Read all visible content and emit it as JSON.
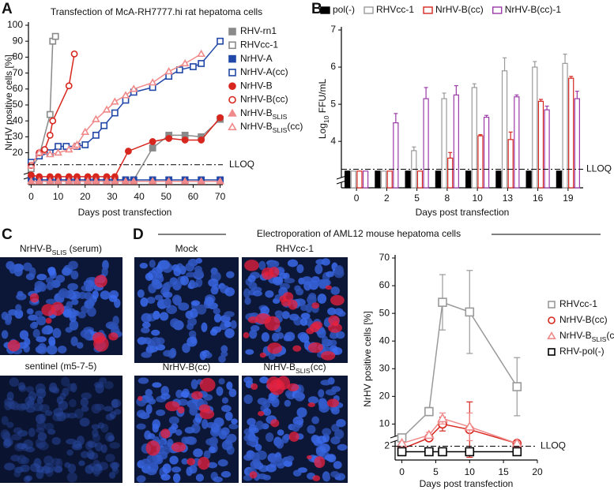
{
  "subscripts": [
    "SLIS",
    "10"
  ],
  "panel_labels": [
    "A",
    "B",
    "C",
    "D"
  ],
  "electroporation_title": "Electroporation of AML12 mouse hepatoma cells",
  "images": [
    {
      "caption": "NrHV-BSLIS (serum)"
    },
    {
      "caption": "sentinel (m5-7-5)"
    },
    {
      "caption": "Mock"
    },
    {
      "caption": "RHVcc-1"
    },
    {
      "caption": "NrHV-B(cc)"
    },
    {
      "caption": "NrHV-BSLIS(cc)"
    }
  ],
  "chart_data": [
    {
      "type": "line",
      "title": "Transfection of McA-RH7777.hi rat hepatoma cells",
      "x_label": "Days post transfection",
      "y_label": "NrHV positive cells [%]",
      "xlim": [
        -1,
        71
      ],
      "xticks": [
        0,
        10,
        20,
        30,
        40,
        50,
        60,
        70
      ],
      "ylim": [
        0,
        100
      ],
      "yticks": [
        20,
        30,
        40,
        50,
        60,
        70,
        80,
        90,
        100
      ],
      "lloq": {
        "value": 12.5,
        "label": "LLOQ"
      },
      "legend": "right",
      "series": [
        {
          "name": "RHV-rn1",
          "color": "#8a8a8a",
          "marker": "square",
          "filled": true,
          "x": [
            0,
            3,
            7,
            10,
            14,
            17,
            21,
            24,
            28,
            31,
            35,
            38,
            45,
            51,
            57,
            63,
            70
          ],
          "values": [
            4,
            3,
            3,
            3,
            3,
            3,
            3,
            3,
            3,
            3,
            3,
            3,
            23,
            31,
            31,
            30,
            41
          ]
        },
        {
          "name": "RHVcc-1",
          "color": "#8a8a8a",
          "marker": "square",
          "filled": false,
          "x": [
            0,
            3,
            7,
            8,
            9
          ],
          "values": [
            10,
            18,
            44,
            90,
            93
          ]
        },
        {
          "name": "NrHV-A",
          "color": "#2148a8",
          "marker": "square",
          "filled": true,
          "x": [
            0,
            3,
            7,
            10,
            14,
            17,
            21,
            24,
            28,
            31,
            35,
            38,
            45,
            51,
            57,
            63,
            70
          ],
          "values": [
            4,
            3,
            3,
            3,
            3,
            3,
            3,
            3,
            3,
            3,
            3,
            3,
            3,
            3,
            3,
            3,
            3
          ]
        },
        {
          "name": "NrHV-A(cc)",
          "color": "#2148a8",
          "marker": "square",
          "filled": false,
          "x": [
            0,
            3,
            7,
            10,
            13,
            17,
            20,
            24,
            27,
            31,
            35,
            38,
            45,
            51,
            55,
            60,
            63,
            70
          ],
          "values": [
            14,
            18,
            20,
            24,
            24,
            24,
            25,
            31,
            37,
            45,
            53,
            58,
            61,
            68,
            72,
            74,
            76,
            90
          ]
        },
        {
          "name": "NrHV-B",
          "color": "#d7261e",
          "marker": "circle",
          "filled": true,
          "x": [
            0,
            3,
            7,
            10,
            14,
            17,
            21,
            24,
            28,
            31,
            36,
            45,
            51,
            57,
            63,
            70
          ],
          "values": [
            6,
            5,
            5,
            5,
            5,
            5,
            5,
            5,
            5,
            5,
            21,
            27,
            29,
            28,
            28,
            42
          ]
        },
        {
          "name": "NrHV-B(cc)",
          "color": "#d7261e",
          "marker": "circle",
          "filled": false,
          "x": [
            0,
            3,
            5,
            7,
            8,
            14,
            16
          ],
          "values": [
            12,
            20,
            22,
            31,
            40,
            62,
            82
          ]
        },
        {
          "name": "NrHV-BSLIS",
          "color": "#f08a8a",
          "marker": "triangle",
          "filled": true,
          "x": [
            0,
            3,
            7,
            10,
            14,
            17,
            21,
            24,
            28,
            31,
            35,
            38,
            45,
            51,
            57,
            63,
            70
          ],
          "values": [
            2,
            2,
            2,
            2,
            2,
            2,
            2,
            2,
            2,
            2,
            2,
            2,
            2,
            2,
            2,
            2,
            2
          ]
        },
        {
          "name": "NrHV-BSLIS(cc)",
          "color": "#f08a8a",
          "marker": "triangle",
          "filled": false,
          "x": [
            0,
            3,
            7,
            10,
            14,
            16,
            17,
            20,
            24,
            28,
            31,
            35,
            38,
            45,
            51,
            57,
            63
          ],
          "values": [
            12,
            20,
            19,
            20,
            22,
            24,
            25,
            33,
            41,
            47,
            52,
            56,
            60,
            64,
            71,
            76,
            82
          ]
        }
      ]
    },
    {
      "type": "bar",
      "x_label": "Days post transfection",
      "y_label": "Log10 FFU/mL",
      "categories": [
        "0",
        "2",
        "5",
        "8",
        "10",
        "13",
        "16",
        "19"
      ],
      "ylim": [
        2.75,
        7
      ],
      "yticks": [
        4,
        5,
        6,
        7
      ],
      "lloq": {
        "value": 3.25,
        "label": "LLOQ"
      },
      "legend": "top",
      "series": [
        {
          "name": "pol(-)",
          "color": "#000000",
          "filled": true,
          "values": [
            3.2,
            3.2,
            3.2,
            3.2,
            3.2,
            3.2,
            3.2,
            3.2
          ],
          "errors": [
            null,
            null,
            null,
            null,
            null,
            null,
            null,
            null
          ]
        },
        {
          "name": "RHVcc-1",
          "color": "#9a9a9a",
          "filled": false,
          "values": [
            3.2,
            3.2,
            3.75,
            5.15,
            5.45,
            5.9,
            6.0,
            6.1
          ],
          "errors": [
            null,
            null,
            0.1,
            0.15,
            0.1,
            0.35,
            0.15,
            0.25
          ]
        },
        {
          "name": "NrHV-B(cc)",
          "color": "#d7261e",
          "filled": false,
          "values": [
            3.2,
            3.2,
            3.2,
            3.55,
            4.15,
            4.05,
            5.08,
            5.7
          ],
          "errors": [
            null,
            null,
            null,
            0.15,
            0.03,
            0.2,
            0.05,
            0.05
          ]
        },
        {
          "name": "NrHV-B(cc)-1",
          "color": "#9b3aa8",
          "filled": false,
          "values": [
            3.2,
            4.5,
            5.15,
            5.25,
            4.65,
            5.2,
            4.85,
            5.15
          ],
          "errors": [
            null,
            0.25,
            0.3,
            0.25,
            0.05,
            0.05,
            0.1,
            0.2
          ]
        }
      ]
    },
    {
      "type": "line",
      "x_label": "Days post transfection",
      "y_label": "NrHV positive cells [%]",
      "xlim": [
        -1,
        20
      ],
      "xticks": [
        0,
        5,
        10,
        15,
        20
      ],
      "ylim": [
        -3,
        70
      ],
      "yticks": [
        2,
        10,
        20,
        30,
        40,
        50,
        60,
        70
      ],
      "lloq": {
        "value": 2,
        "label": "LLOQ"
      },
      "legend": "right",
      "series": [
        {
          "name": "RHVcc-1",
          "color": "#9a9a9a",
          "marker": "square",
          "filled": false,
          "x": [
            0,
            4,
            6,
            10,
            17
          ],
          "values": [
            5,
            14.5,
            54,
            50.5,
            23.5
          ],
          "errors": [
            null,
            1.5,
            10,
            15,
            10.5
          ]
        },
        {
          "name": "NrHV-B(cc)",
          "color": "#d7261e",
          "marker": "circle",
          "filled": false,
          "x": [
            0,
            4,
            6,
            10,
            17
          ],
          "values": [
            1,
            5,
            10,
            8,
            3
          ],
          "errors": [
            null,
            1,
            2.5,
            10,
            null
          ]
        },
        {
          "name": "NrHV-BSLIS(cc)",
          "color": "#f08a8a",
          "marker": "triangle",
          "filled": false,
          "x": [
            0,
            4,
            6,
            10,
            17
          ],
          "values": [
            3,
            6,
            12,
            9,
            3
          ],
          "errors": [
            null,
            1,
            2,
            5,
            null
          ]
        },
        {
          "name": "RHV-pol(-)",
          "color": "#000000",
          "marker": "square",
          "filled": false,
          "x": [
            0,
            4,
            6,
            10,
            17
          ],
          "values": [
            0,
            0,
            0,
            0,
            0
          ],
          "errors": [
            null,
            null,
            null,
            null,
            null
          ]
        }
      ]
    }
  ]
}
